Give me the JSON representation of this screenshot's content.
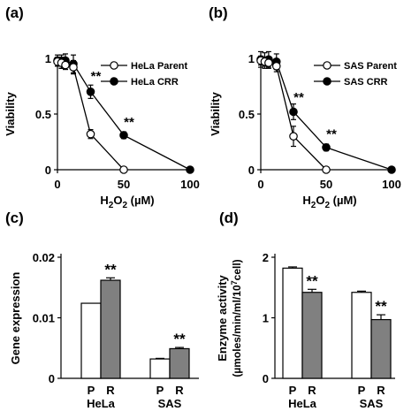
{
  "chart_data": [
    {
      "panel": "(a)",
      "type": "line",
      "ylabel": "Viability",
      "xlabel_main": "H",
      "xlabel_sub": "2",
      "xlabel_tail": "O",
      "xlabel_sub2": "2",
      "xlabel_unit": " (µM)",
      "xlim": [
        0,
        100
      ],
      "ylim": [
        0,
        1
      ],
      "xticks": [
        "0",
        "50",
        "100"
      ],
      "yticks": [
        "0",
        "0.5",
        "1"
      ],
      "legend_placement": "top-right",
      "series": [
        {
          "name": "HeLa Parent",
          "marker": "open",
          "x": [
            0,
            3,
            6,
            12,
            25,
            50
          ],
          "y": [
            0.97,
            0.96,
            0.94,
            0.92,
            0.32,
            0.0
          ],
          "err": [
            0.04,
            0.05,
            0.04,
            0.06,
            0.04,
            0.0
          ]
        },
        {
          "name": "HeLa CRR",
          "marker": "filled",
          "x": [
            0,
            3,
            6,
            12,
            25,
            50,
            100
          ],
          "y": [
            0.98,
            0.97,
            0.98,
            0.95,
            0.7,
            0.31,
            0.0
          ],
          "err": [
            0.05,
            0.06,
            0.06,
            0.08,
            0.06,
            0.03,
            0.0
          ]
        }
      ],
      "annotations": [
        {
          "x": 25,
          "y": 0.8,
          "text": "**"
        },
        {
          "x": 50,
          "y": 0.39,
          "text": "**"
        }
      ]
    },
    {
      "panel": "(b)",
      "type": "line",
      "ylabel": "Viability",
      "xlabel_main": "H",
      "xlabel_sub": "2",
      "xlabel_tail": "O",
      "xlabel_sub2": "2",
      "xlabel_unit": " (µM)",
      "xlim": [
        0,
        100
      ],
      "ylim": [
        0,
        1
      ],
      "xticks": [
        "0",
        "50",
        "100"
      ],
      "yticks": [
        "0",
        "0.5",
        "1"
      ],
      "legend_placement": "top-right",
      "series": [
        {
          "name": "SAS Parent",
          "marker": "open",
          "x": [
            0,
            3,
            6,
            12,
            25,
            50
          ],
          "y": [
            0.98,
            0.97,
            0.96,
            0.93,
            0.3,
            0.0
          ],
          "err": [
            0.04,
            0.04,
            0.05,
            0.05,
            0.09,
            0.0
          ]
        },
        {
          "name": "SAS CRR",
          "marker": "filled",
          "x": [
            0,
            3,
            6,
            12,
            25,
            50,
            100
          ],
          "y": [
            0.99,
            0.98,
            0.99,
            0.97,
            0.52,
            0.2,
            0.0
          ],
          "err": [
            0.07,
            0.07,
            0.07,
            0.07,
            0.07,
            0.03,
            0.0
          ]
        }
      ],
      "annotations": [
        {
          "x": 25,
          "y": 0.61,
          "text": "**"
        },
        {
          "x": 50,
          "y": 0.28,
          "text": "**"
        }
      ]
    },
    {
      "panel": "(c)",
      "type": "bar",
      "ylabel": "Gene expression",
      "ylim": [
        0,
        0.02
      ],
      "yticks": [
        "0",
        "0.01",
        "0.02"
      ],
      "groups": [
        "HeLa",
        "SAS"
      ],
      "bar_labels": [
        "P",
        "R"
      ],
      "series": [
        {
          "name": "P",
          "color": "#ffffff",
          "values": [
            0.0124,
            0.0032
          ],
          "err": [
            0.0,
            0.0001
          ]
        },
        {
          "name": "R",
          "color": "#808080",
          "values": [
            0.0162,
            0.0049
          ],
          "err": [
            0.0004,
            0.0002
          ]
        }
      ],
      "annotations": [
        "**",
        "**"
      ]
    },
    {
      "panel": "(d)",
      "type": "bar",
      "ylabel_line1": "Enzyme activity",
      "ylabel_line2": "(µmoles/min/ml/10",
      "ylabel_sup": "7",
      "ylabel_tail": "cell)",
      "ylim": [
        0,
        2
      ],
      "yticks": [
        "0",
        "1",
        "2"
      ],
      "groups": [
        "HeLa",
        "SAS"
      ],
      "bar_labels": [
        "P",
        "R"
      ],
      "series": [
        {
          "name": "P",
          "color": "#ffffff",
          "values": [
            1.82,
            1.42
          ],
          "err": [
            0.02,
            0.02
          ]
        },
        {
          "name": "R",
          "color": "#808080",
          "values": [
            1.42,
            0.97
          ],
          "err": [
            0.05,
            0.08
          ]
        }
      ],
      "annotations": [
        "**",
        "**"
      ]
    }
  ]
}
